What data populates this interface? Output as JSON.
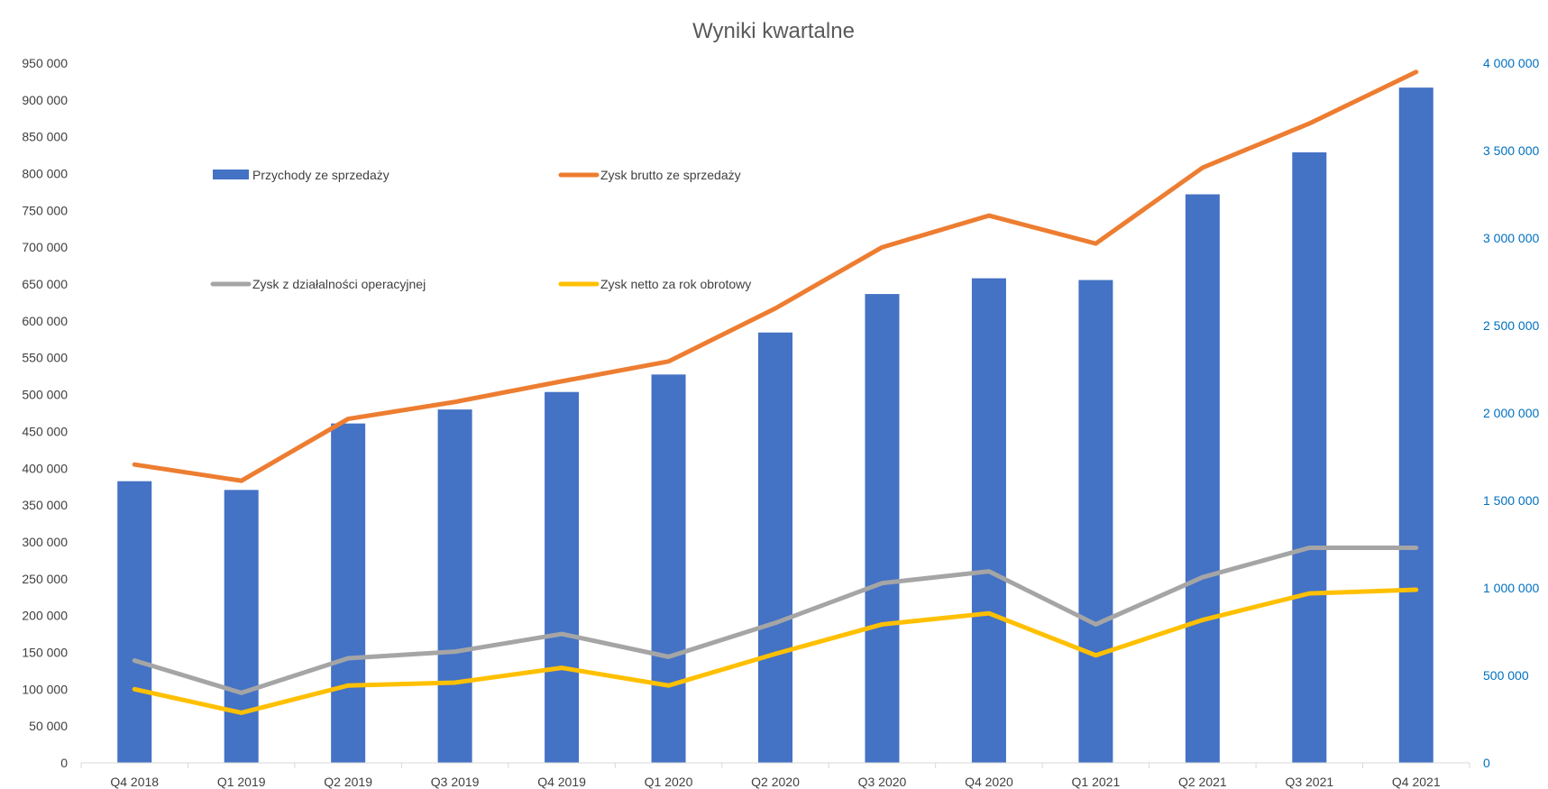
{
  "chart_data": {
    "type": "bar",
    "title": "Wyniki kwartalne",
    "categories": [
      "Q4 2018",
      "Q1 2019",
      "Q2 2019",
      "Q3 2019",
      "Q4 2019",
      "Q1 2020",
      "Q2 2020",
      "Q3 2020",
      "Q4 2020",
      "Q1 2021",
      "Q2 2021",
      "Q3 2021",
      "Q4 2021"
    ],
    "y_left": {
      "min": 0,
      "max": 950000,
      "step": 50000,
      "tick_labels": [
        "0",
        "50 000",
        "100 000",
        "150 000",
        "200 000",
        "250 000",
        "300 000",
        "350 000",
        "400 000",
        "450 000",
        "500 000",
        "550 000",
        "600 000",
        "650 000",
        "700 000",
        "750 000",
        "800 000",
        "850 000",
        "900 000",
        "950 000"
      ]
    },
    "y_right": {
      "min": 0,
      "max": 4000000,
      "step": 500000,
      "tick_labels": [
        "0",
        "500 000",
        "1 000 000",
        "1 500 000",
        "2 000 000",
        "2 500 000",
        "3 000 000",
        "3 500 000",
        "4 000 000"
      ]
    },
    "legend_placement": "inside-top-left",
    "series": [
      {
        "name": "Przychody ze sprzedaży",
        "type": "bar",
        "axis": "right",
        "color": "#4472C4",
        "values": [
          1610000,
          1560000,
          1940000,
          2020000,
          2120000,
          2220000,
          2460000,
          2680000,
          2770000,
          2760000,
          3250000,
          3490000,
          3860000
        ]
      },
      {
        "name": "Zysk brutto ze sprzedaży",
        "type": "line",
        "axis": "left",
        "color": "#ED7D31",
        "values": [
          405000,
          383000,
          467000,
          490000,
          518000,
          545000,
          617000,
          700000,
          743000,
          705000,
          808000,
          868000,
          938000
        ]
      },
      {
        "name": "Zysk z działalności operacyjnej",
        "type": "line",
        "axis": "left",
        "color": "#A5A5A5",
        "values": [
          139000,
          95000,
          142000,
          151000,
          175000,
          144000,
          190000,
          244000,
          260000,
          188000,
          252000,
          292000,
          292000
        ]
      },
      {
        "name": "Zysk netto za rok obrotowy",
        "type": "line",
        "axis": "left",
        "color": "#FFC000",
        "values": [
          100000,
          68000,
          105000,
          109000,
          129000,
          105000,
          148000,
          188000,
          203000,
          146000,
          194000,
          230000,
          235000
        ]
      }
    ]
  }
}
